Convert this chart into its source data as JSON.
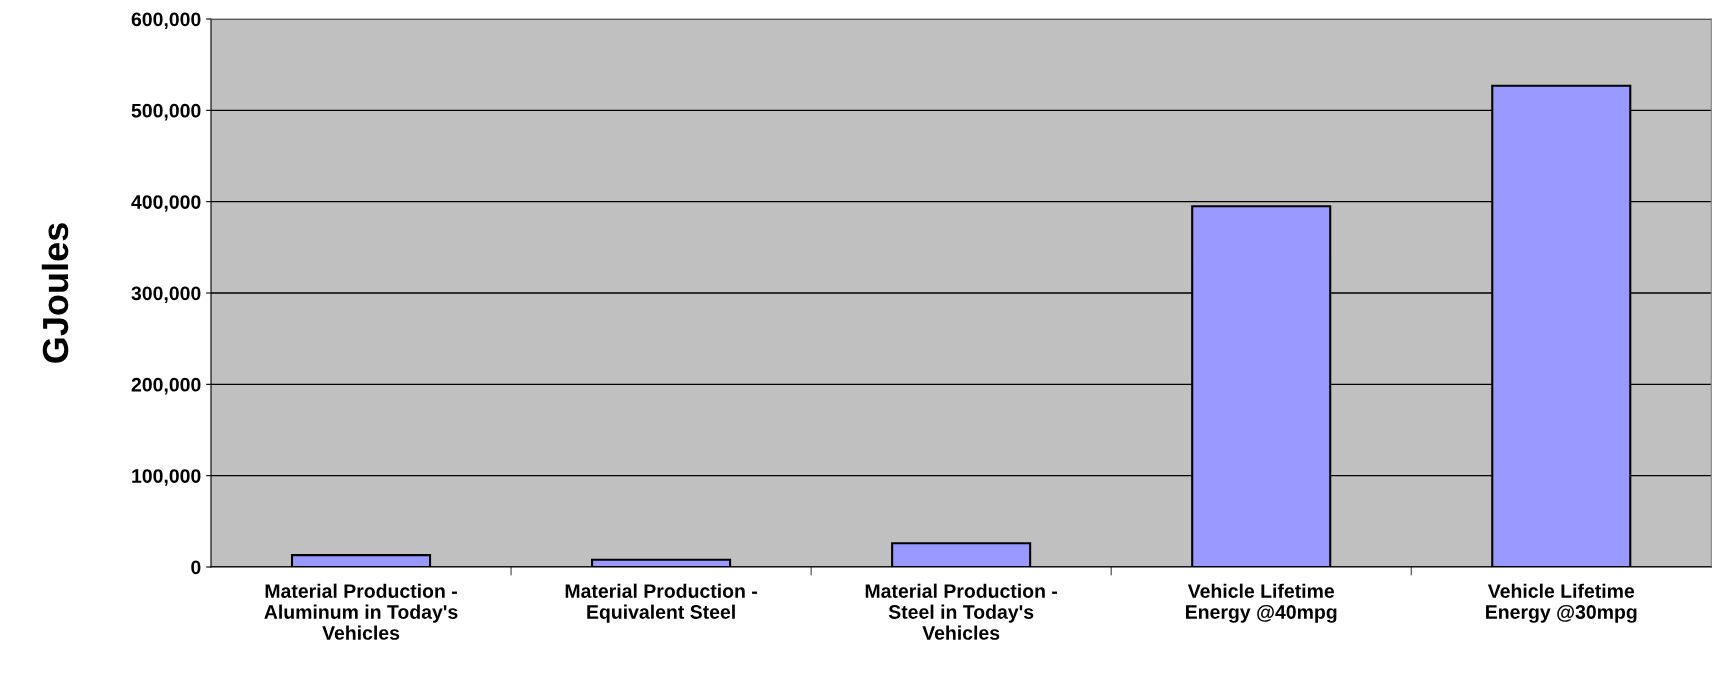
{
  "chart_data": {
    "type": "bar",
    "ylabel": "GJoules",
    "categories": [
      "Material Production -\nAluminum in Today's\nVehicles",
      "Material Production -\nEquivalent Steel",
      "Material Production -\nSteel in Today's\nVehicles",
      "Vehicle Lifetime\nEnergy @40mpg",
      "Vehicle Lifetime\nEnergy @30mpg"
    ],
    "values": [
      13000,
      8000,
      26000,
      395000,
      527000
    ],
    "color": "#9999ff",
    "ylim": [
      0,
      600000
    ],
    "yticks": [
      {
        "value": 0,
        "label": "0"
      },
      {
        "value": 100000,
        "label": "100,000"
      },
      {
        "value": 200000,
        "label": "200,000"
      },
      {
        "value": 300000,
        "label": "300,000"
      },
      {
        "value": 400000,
        "label": "400,000"
      },
      {
        "value": 500000,
        "label": "500,000"
      },
      {
        "value": 600000,
        "label": "600,000"
      }
    ],
    "grid": "y"
  }
}
